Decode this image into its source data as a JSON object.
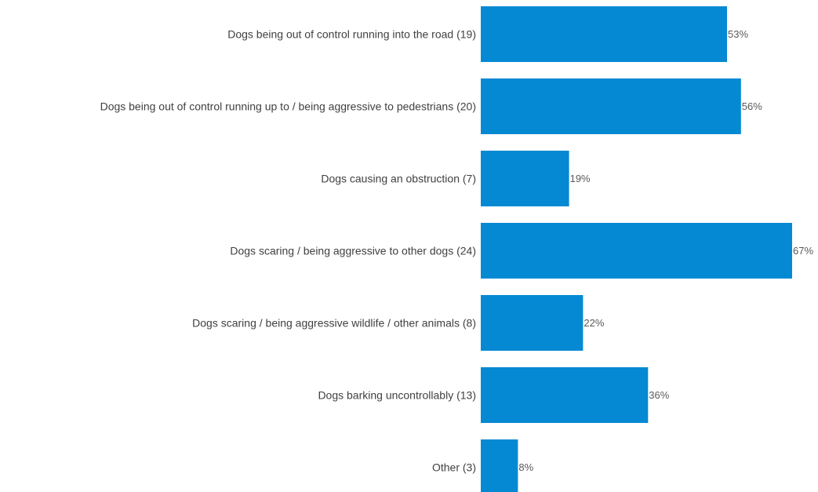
{
  "chart_data": {
    "type": "bar",
    "orientation": "horizontal",
    "categories": [
      "Dogs being out of control running into the road (19)",
      "Dogs being out of control running up to / being aggressive to pedestrians (20)",
      "Dogs causing an obstruction (7)",
      "Dogs scaring / being aggressive to other dogs (24)",
      "Dogs scaring / being aggressive wildlife / other animals (8)",
      "Dogs barking uncontrollably (13)",
      "Other (3)"
    ],
    "values": [
      53,
      56,
      19,
      67,
      22,
      36,
      8
    ],
    "value_labels": [
      "53%",
      "56%",
      "19%",
      "67%",
      "22%",
      "36%",
      "8%"
    ],
    "unit": "%",
    "xlim": [
      0,
      67
    ],
    "grid": false,
    "legend": "none",
    "colors": {
      "bar": "#0689D3",
      "category_text": "#404040",
      "value_text": "#595959"
    }
  }
}
